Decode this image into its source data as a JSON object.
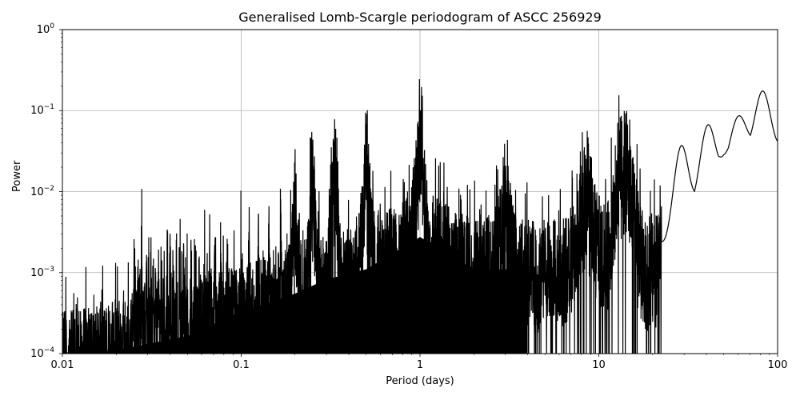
{
  "chart_data": {
    "type": "line",
    "title": "Generalised Lomb-Scargle periodogram of ASCC 256929",
    "xlabel": "Period (days)",
    "ylabel": "Power",
    "xscale": "log",
    "yscale": "log",
    "xlim": [
      0.01,
      100
    ],
    "ylim": [
      0.0001,
      1
    ],
    "grid": true,
    "legend": null,
    "line_color": "#000000",
    "grid_color": "#b0b0b0",
    "x_ticks": [
      {
        "value": 0.01,
        "label": "0.01"
      },
      {
        "value": 0.1,
        "label": "0.1"
      },
      {
        "value": 1,
        "label": "1"
      },
      {
        "value": 10,
        "label": "10"
      },
      {
        "value": 100,
        "label": "100"
      }
    ],
    "y_ticks": [
      {
        "value": 1,
        "base": "10",
        "exp": "0"
      },
      {
        "value": 0.1,
        "base": "10",
        "exp": "−1"
      },
      {
        "value": 0.01,
        "base": "10",
        "exp": "−2"
      },
      {
        "value": 0.001,
        "base": "10",
        "exp": "−3"
      },
      {
        "value": 0.0001,
        "base": "10",
        "exp": "−4"
      }
    ],
    "notable_peaks": [
      {
        "period": 0.2,
        "power": 0.015
      },
      {
        "period": 0.25,
        "power": 0.06
      },
      {
        "period": 0.333,
        "power": 0.08
      },
      {
        "period": 0.5,
        "power": 0.085
      },
      {
        "period": 1.0,
        "power": 0.12
      },
      {
        "period": 3.0,
        "power": 0.018
      },
      {
        "period": 8.5,
        "power": 0.025
      },
      {
        "period": 13.5,
        "power": 0.1
      },
      {
        "period": 14.2,
        "power": 0.08
      },
      {
        "period": 29.0,
        "power": 0.035
      },
      {
        "period": 40.0,
        "power": 0.055
      },
      {
        "period": 46.0,
        "power": 0.036
      },
      {
        "period": 65.0,
        "power": 0.09
      },
      {
        "period": 80.0,
        "power": 0.155
      },
      {
        "period": 100.0,
        "power": 0.031
      }
    ],
    "envelope": {
      "period": [
        0.01,
        0.02,
        0.05,
        0.1,
        0.2,
        0.3,
        0.5,
        1.0,
        2.0,
        5.0,
        10.0,
        20.0,
        50.0,
        100.0
      ],
      "typical_power": [
        0.00015,
        0.0002,
        0.0003,
        0.0006,
        0.001,
        0.0015,
        0.002,
        0.005,
        0.002,
        0.002,
        0.003,
        0.002,
        0.03,
        0.05
      ]
    }
  }
}
